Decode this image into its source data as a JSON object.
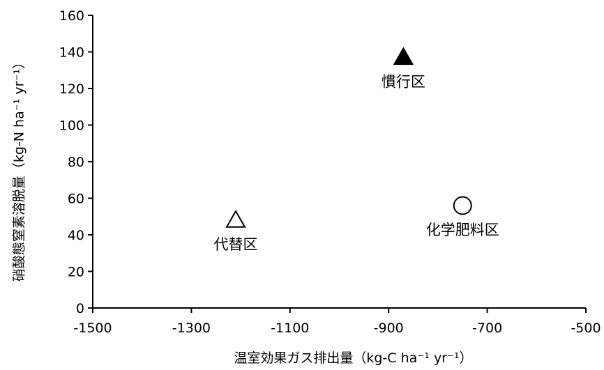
{
  "chart_data": {
    "type": "scatter",
    "title": "",
    "xlabel": "温室効果ガス排出量（kg-C  ha⁻¹ yr⁻¹）",
    "ylabel": "硝酸態窒素溶脱量（kg-N ha⁻¹ yr⁻¹）",
    "xlim": [
      -1500,
      -500
    ],
    "ylim": [
      0,
      160
    ],
    "xticks": [
      -1500,
      -1300,
      -1100,
      -900,
      -700,
      -500
    ],
    "yticks": [
      0,
      20,
      40,
      60,
      80,
      100,
      120,
      140,
      160
    ],
    "grid": false,
    "legend": "none",
    "points": [
      {
        "label": "慣行区",
        "x": -870,
        "y": 137,
        "marker": "filled-triangle",
        "label_position": "below"
      },
      {
        "label": "代替区",
        "x": -1210,
        "y": 48,
        "marker": "open-triangle",
        "label_position": "below"
      },
      {
        "label": "化学肥料区",
        "x": -750,
        "y": 56,
        "marker": "open-circle",
        "label_position": "below"
      }
    ],
    "colors": {
      "axis": "#000000",
      "marker": "#000000",
      "background": "#ffffff"
    }
  }
}
